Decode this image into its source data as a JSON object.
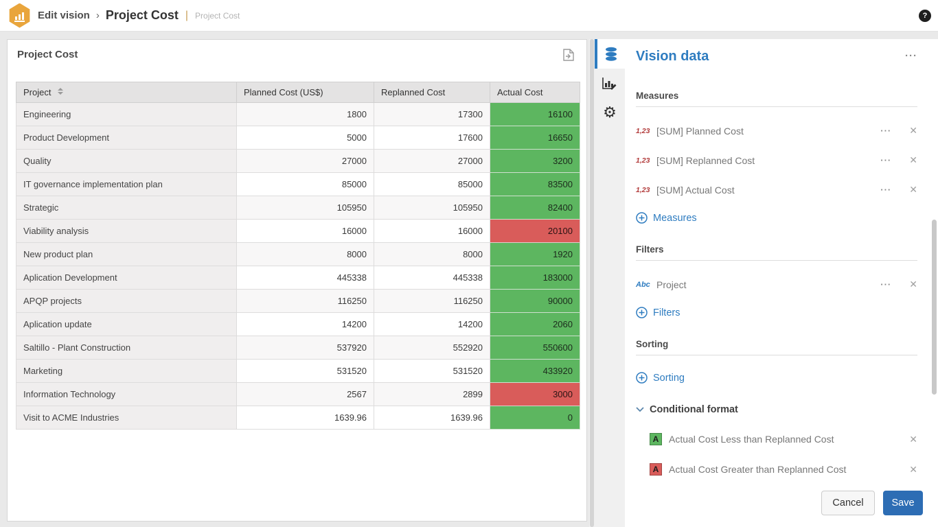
{
  "topbar": {
    "breadcrumb_root": "Edit vision",
    "separator": "›",
    "breadcrumb_current": "Project Cost",
    "pipe": "|",
    "subtitle": "Project Cost",
    "help_label": "?",
    "logo_color": "#e9a53c"
  },
  "card": {
    "title": "Project Cost"
  },
  "table": {
    "columns": [
      "Project",
      "Planned Cost (US$)",
      "Replanned Cost",
      "Actual Cost"
    ],
    "rows": [
      {
        "project": "Engineering",
        "planned": "1800",
        "replanned": "17300",
        "actual": "16100",
        "actual_status": "green"
      },
      {
        "project": "Product Development",
        "planned": "5000",
        "replanned": "17600",
        "actual": "16650",
        "actual_status": "green"
      },
      {
        "project": "Quality",
        "planned": "27000",
        "replanned": "27000",
        "actual": "3200",
        "actual_status": "green"
      },
      {
        "project": "IT governance implementation plan",
        "planned": "85000",
        "replanned": "85000",
        "actual": "83500",
        "actual_status": "green"
      },
      {
        "project": "Strategic",
        "planned": "105950",
        "replanned": "105950",
        "actual": "82400",
        "actual_status": "green"
      },
      {
        "project": "Viability analysis",
        "planned": "16000",
        "replanned": "16000",
        "actual": "20100",
        "actual_status": "red"
      },
      {
        "project": "New product plan",
        "planned": "8000",
        "replanned": "8000",
        "actual": "1920",
        "actual_status": "green"
      },
      {
        "project": "Aplication Development",
        "planned": "445338",
        "replanned": "445338",
        "actual": "183000",
        "actual_status": "green"
      },
      {
        "project": "APQP projects",
        "planned": "116250",
        "replanned": "116250",
        "actual": "90000",
        "actual_status": "green"
      },
      {
        "project": "Aplication update",
        "planned": "14200",
        "replanned": "14200",
        "actual": "2060",
        "actual_status": "green"
      },
      {
        "project": "Saltillo - Plant Construction",
        "planned": "537920",
        "replanned": "552920",
        "actual": "550600",
        "actual_status": "green"
      },
      {
        "project": "Marketing",
        "planned": "531520",
        "replanned": "531520",
        "actual": "433920",
        "actual_status": "green"
      },
      {
        "project": "Information Technology",
        "planned": "2567",
        "replanned": "2899",
        "actual": "3000",
        "actual_status": "red"
      },
      {
        "project": "Visit to ACME Industries",
        "planned": "1639.96",
        "replanned": "1639.96",
        "actual": "0",
        "actual_status": "green"
      }
    ]
  },
  "panel": {
    "title": "Vision data",
    "menu": "···",
    "measures": {
      "label": "Measures",
      "items": [
        {
          "icon": "1,23",
          "label": "[SUM] Planned Cost"
        },
        {
          "icon": "1,23",
          "label": "[SUM] Replanned Cost"
        },
        {
          "icon": "1,23",
          "label": "[SUM] Actual Cost"
        }
      ],
      "add_label": "Measures"
    },
    "filters": {
      "label": "Filters",
      "items": [
        {
          "icon": "Abc",
          "label": "Project"
        }
      ],
      "add_label": "Filters"
    },
    "sorting": {
      "label": "Sorting",
      "add_label": "Sorting"
    },
    "conditional": {
      "label": "Conditional format",
      "items": [
        {
          "swatch": "A",
          "color": "#5db660",
          "label": "Actual Cost Less than Replanned Cost"
        },
        {
          "swatch": "A",
          "color": "#d95c5a",
          "label": "Actual Cost Greater than Replanned Cost"
        }
      ]
    },
    "cancel_label": "Cancel",
    "save_label": "Save"
  },
  "colors": {
    "accent_blue": "#2e7cc0",
    "save_blue": "#2d6db4",
    "cond_green": "#5db660",
    "cond_red": "#d95c5a"
  }
}
